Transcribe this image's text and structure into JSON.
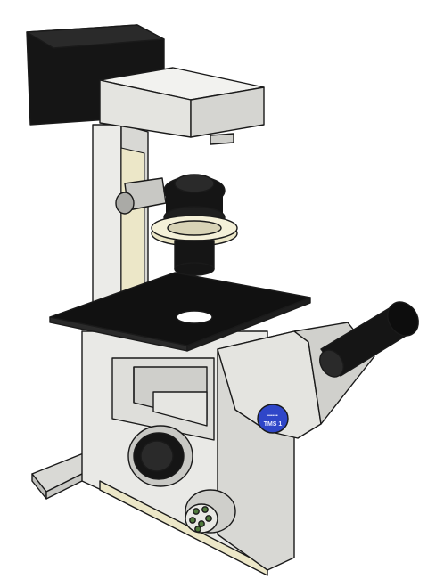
{
  "scene": {
    "subject": "inverted-microscope",
    "colors": {
      "body": "#e9e9e6",
      "body_shade": "#d6d6d2",
      "stage": "#111111",
      "lamp_housing": "#151515",
      "outline": "#1a1a1a",
      "badge": "#2f46c8",
      "badge_text": "#e8eaff",
      "cream": "#ece7c8",
      "knob_green": "#4f7a3c"
    }
  },
  "badge": {
    "line1": "▪▪▪▪▪▪",
    "line2": "TMS 1"
  }
}
